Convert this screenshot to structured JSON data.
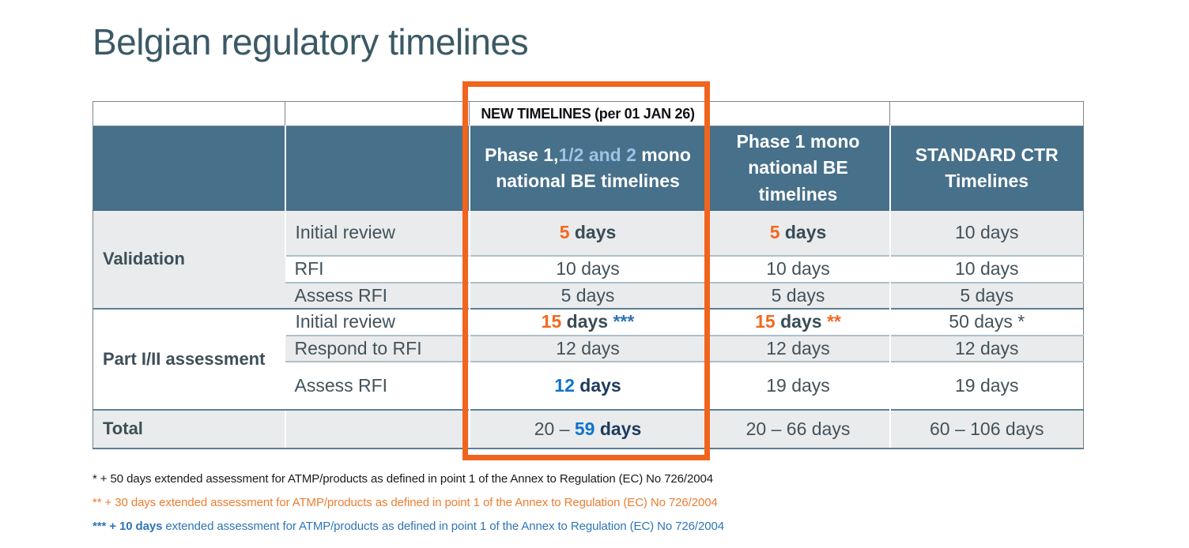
{
  "title": "Belgian regulatory timelines",
  "table": {
    "overlay_header": "NEW TIMELINES (per 01 JAN 26)",
    "headers": [
      {
        "parts": []
      },
      {
        "parts": []
      },
      {
        "parts": [
          {
            "t": "Phase 1,"
          },
          {
            "t": "1/2 and 2",
            "s": "lightblue"
          },
          {
            "t": " mono national BE timelines"
          }
        ]
      },
      {
        "parts": [
          {
            "t": "Phase 1 mono national BE timelines"
          }
        ]
      },
      {
        "parts": [
          {
            "t": "STANDARD CTR Timelines"
          }
        ]
      }
    ],
    "groups": [
      {
        "label": "Validation",
        "rows": [
          {
            "activity": "Initial review",
            "shaded": true,
            "values": [
              [
                {
                  "t": "5",
                  "s": "orange"
                },
                {
                  "t": " days",
                  "s": "darkbold"
                }
              ],
              [
                {
                  "t": "5",
                  "s": "orange"
                },
                {
                  "t": " days",
                  "s": "darkbold"
                }
              ],
              [
                {
                  "t": "10 days"
                }
              ]
            ]
          },
          {
            "activity": "RFI",
            "shaded": false,
            "values": [
              [
                {
                  "t": "10 days"
                }
              ],
              [
                {
                  "t": "10 days"
                }
              ],
              [
                {
                  "t": "10 days"
                }
              ]
            ]
          },
          {
            "activity": "Assess RFI",
            "shaded": true,
            "values": [
              [
                {
                  "t": "5 days"
                }
              ],
              [
                {
                  "t": "5 days"
                }
              ],
              [
                {
                  "t": "5 days"
                }
              ]
            ]
          }
        ]
      },
      {
        "label": "Part I/II assessment",
        "rows": [
          {
            "activity": "Initial review",
            "shaded": false,
            "values": [
              [
                {
                  "t": "15",
                  "s": "orange"
                },
                {
                  "t": " days",
                  "s": "darkbold"
                },
                {
                  "t": " ***",
                  "s": "astblue"
                }
              ],
              [
                {
                  "t": "15",
                  "s": "orange"
                },
                {
                  "t": " days",
                  "s": "darkbold"
                },
                {
                  "t": " **",
                  "s": "orange"
                }
              ],
              [
                {
                  "t": "50 days *"
                }
              ]
            ]
          },
          {
            "activity": "Respond to RFI",
            "shaded": true,
            "values": [
              [
                {
                  "t": "12 days"
                }
              ],
              [
                {
                  "t": "12 days"
                }
              ],
              [
                {
                  "t": "12 days"
                }
              ]
            ]
          },
          {
            "activity": "Assess RFI",
            "shaded": false,
            "values": [
              [
                {
                  "t": "12",
                  "s": "blue"
                },
                {
                  "t": " days",
                  "s": "navy"
                }
              ],
              [
                {
                  "t": "19 days"
                }
              ],
              [
                {
                  "t": "19 days"
                }
              ]
            ]
          }
        ]
      }
    ],
    "total": {
      "label": "Total",
      "values": [
        [
          {
            "t": "20 – "
          },
          {
            "t": "59",
            "s": "blue"
          },
          {
            "t": " days",
            "s": "navy"
          }
        ],
        [
          {
            "t": "20 – 66 days"
          }
        ],
        [
          {
            "t": "60 – 106 days"
          }
        ]
      ]
    }
  },
  "footnotes": [
    {
      "color": "#1A1A1A",
      "parts": [
        {
          "t": "* + 50 days extended assessment for ATMP/products as defined in point 1 of the Annex to Regulation (EC) No 726/2004"
        }
      ]
    },
    {
      "color": "#ED7D31",
      "parts": [
        {
          "t": "** + 30 days extended assessment for ATMP/products as defined in point 1 of the Annex to Regulation (EC) No 726/2004"
        }
      ]
    },
    {
      "color": "#2E75B6",
      "parts": [
        {
          "t": "*** + 10 days",
          "s": "bold"
        },
        {
          "t": " extended assessment for ATMP/products as defined in point 1 of the Annex to Regulation (EC) No 726/2004"
        }
      ]
    }
  ],
  "colors": {
    "accent_orange": "#F0641E",
    "accent_blue": "#0E74CC",
    "header_bg": "#47708A",
    "header_lightblue": "#9DC3E6",
    "row_shade": "#E9EBED",
    "body_text": "#43525B",
    "title_text": "#3B5965"
  }
}
